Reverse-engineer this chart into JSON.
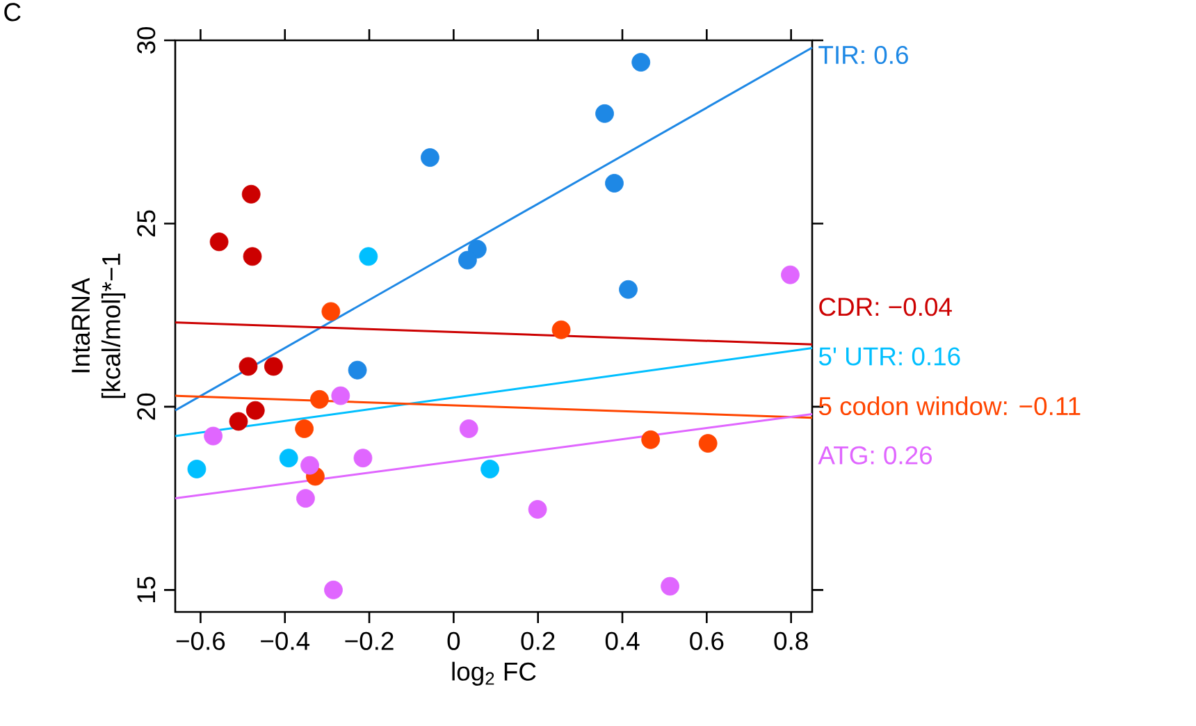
{
  "chart_data": {
    "type": "scatter",
    "xlabel": "log$_{2}$ FC",
    "ylabel": "IntaRNA [kcal/mol]*−1",
    "annotations": [
      "C"
    ],
    "xlim": [
      -0.66,
      0.85
    ],
    "ylim": [
      14.4,
      30
    ],
    "xticks": [
      {
        "value": -0.6,
        "label": "−0.6"
      },
      {
        "value": -0.4,
        "label": "−0.4"
      },
      {
        "value": -0.2,
        "label": "−0.2"
      },
      0,
      0.2,
      0.4,
      0.6,
      0.8
    ],
    "yticks": [
      15,
      20,
      25,
      30
    ],
    "grid": false,
    "marker": "circle",
    "series": [
      {
        "color": "#1e88e5",
        "x": [
          -0.056,
          0.444,
          0.358,
          0.381,
          0.056,
          0.033,
          0.414,
          -0.228
        ],
        "values": [
          26.8,
          29.4,
          28.0,
          26.1,
          24.3,
          24.0,
          23.2,
          21.0
        ]
      },
      {
        "color": "#cc0000",
        "x": [
          -0.48,
          -0.556,
          -0.477,
          -0.487,
          -0.427,
          -0.47,
          -0.51
        ],
        "values": [
          25.8,
          24.5,
          24.1,
          21.1,
          21.1,
          19.9,
          19.6
        ]
      },
      {
        "color": "#00bfff",
        "x": [
          -0.202,
          -0.609,
          -0.391,
          0.086
        ],
        "values": [
          24.1,
          18.3,
          18.6,
          18.3
        ]
      },
      {
        "color": "#ff4500",
        "x": [
          -0.291,
          -0.318,
          -0.354,
          -0.328,
          0.255,
          0.467,
          0.603
        ],
        "values": [
          22.6,
          20.2,
          19.4,
          18.1,
          22.1,
          19.1,
          19.0
        ]
      },
      {
        "color": "#e066ff",
        "x": [
          -0.57,
          -0.268,
          -0.341,
          -0.215,
          -0.351,
          -0.285,
          0.036,
          0.199,
          0.513,
          0.798
        ],
        "values": [
          19.2,
          20.3,
          18.4,
          18.6,
          17.5,
          15.0,
          19.4,
          17.2,
          15.1,
          23.6
        ]
      },
      {
        "type": "line",
        "marker": "none",
        "name": "TIR: 0.6",
        "color": "#1e88e5",
        "x": [
          -0.66,
          0.85
        ],
        "values": [
          19.9,
          29.8
        ]
      },
      {
        "type": "line",
        "marker": "none",
        "name": "CDR: −0.04",
        "color": "#cc0000",
        "x": [
          -0.66,
          0.85
        ],
        "values": [
          22.3,
          21.7
        ]
      },
      {
        "type": "line",
        "marker": "none",
        "name": "5' UTR: 0.16",
        "color": "#00bfff",
        "x": [
          -0.66,
          0.85
        ],
        "values": [
          19.2,
          21.6
        ]
      },
      {
        "type": "line",
        "marker": "none",
        "name": "5 codon window: −0.11",
        "color": "#ff4500",
        "x": [
          -0.66,
          0.85
        ],
        "values": [
          20.3,
          19.7
        ]
      },
      {
        "type": "line",
        "marker": "none",
        "name": "ATG: 0.26",
        "color": "#e066ff",
        "x": [
          -0.66,
          0.85
        ],
        "values": [
          17.5,
          19.8
        ]
      }
    ]
  }
}
